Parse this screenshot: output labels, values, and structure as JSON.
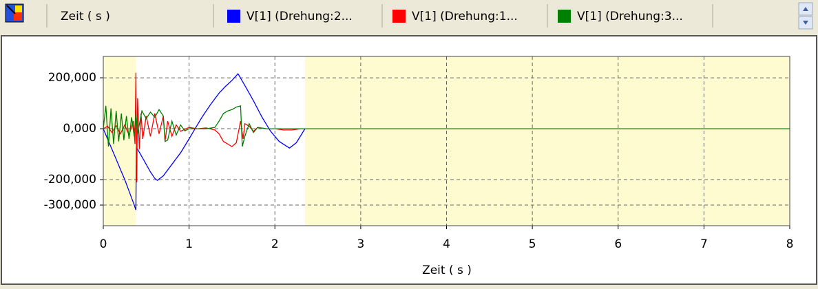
{
  "toolbar": {
    "x_selector": "Zeit ( s )"
  },
  "chart_data": {
    "type": "line",
    "x_label": "Zeit ( s )",
    "xlim": [
      0,
      8
    ],
    "xticks": [
      0,
      1,
      2,
      3,
      4,
      5,
      6,
      7,
      8
    ],
    "ylim": [
      -381000,
      284000
    ],
    "yticks": [
      {
        "value": 200000,
        "label": "200,000"
      },
      {
        "value": 0,
        "label": "0,000"
      },
      {
        "value": -200000,
        "label": "-200,000"
      },
      {
        "value": -300000,
        "label": "-300,000"
      }
    ],
    "grid": true,
    "shaded_ranges": [
      [
        0,
        0.38
      ],
      [
        2.35,
        8
      ]
    ],
    "shade_color": "#fffbd0",
    "series": [
      {
        "name": "V[1] (Drehung:2...",
        "color": "#0000ff",
        "x": [
          0,
          0.05,
          0.1,
          0.15,
          0.2,
          0.25,
          0.3,
          0.35,
          0.38,
          0.385,
          0.4,
          0.45,
          0.5,
          0.55,
          0.6,
          0.63,
          0.7,
          0.8,
          0.9,
          1.0,
          1.07,
          1.15,
          1.25,
          1.35,
          1.42,
          1.5,
          1.57,
          1.65,
          1.75,
          1.85,
          1.95,
          2.05,
          2.17,
          2.25,
          2.35
        ],
        "values": [
          0,
          -40000,
          -80000,
          -120000,
          -160000,
          -200000,
          -245000,
          -290000,
          -319000,
          -76000,
          -80000,
          -110000,
          -140000,
          -170000,
          -195000,
          -203000,
          -185000,
          -140000,
          -95000,
          -40000,
          0,
          45000,
          95000,
          140000,
          165000,
          190000,
          216000,
          170000,
          110000,
          45000,
          -10000,
          -50000,
          -76000,
          -55000,
          0
        ]
      },
      {
        "name": "V[1] (Drehung:1...",
        "color": "#ff0000",
        "x": [
          0,
          0.05,
          0.1,
          0.15,
          0.2,
          0.25,
          0.3,
          0.35,
          0.37,
          0.38,
          0.39,
          0.4,
          0.42,
          0.44,
          0.46,
          0.5,
          0.55,
          0.6,
          0.65,
          0.7,
          0.72,
          0.75,
          0.8,
          0.85,
          0.9,
          1.0,
          1.1,
          1.2,
          1.3,
          1.35,
          1.4,
          1.45,
          1.5,
          1.55,
          1.6,
          1.63,
          1.65,
          1.7,
          1.75,
          1.8,
          1.9,
          2.0,
          2.1,
          2.2,
          2.3,
          2.35
        ],
        "values": [
          0,
          10000,
          -15000,
          12000,
          -20000,
          15000,
          -25000,
          30000,
          -60000,
          220000,
          -210000,
          120000,
          -80000,
          60000,
          -40000,
          50000,
          -30000,
          60000,
          -20000,
          50000,
          -50000,
          30000,
          -30000,
          15000,
          -10000,
          5000,
          0,
          3000,
          -5000,
          -20000,
          -50000,
          -60000,
          -70000,
          -55000,
          30000,
          -40000,
          20000,
          10000,
          -10000,
          5000,
          0,
          0,
          -5000,
          -5000,
          0,
          0
        ]
      },
      {
        "name": "V[1] (Drehung:3...",
        "color": "#008000",
        "x": [
          0,
          0.03,
          0.06,
          0.09,
          0.12,
          0.15,
          0.18,
          0.21,
          0.24,
          0.27,
          0.3,
          0.33,
          0.36,
          0.38,
          0.4,
          0.45,
          0.5,
          0.55,
          0.6,
          0.65,
          0.7,
          0.72,
          0.75,
          0.8,
          0.85,
          0.9,
          0.95,
          1.0,
          1.2,
          1.3,
          1.35,
          1.4,
          1.45,
          1.5,
          1.55,
          1.6,
          1.62,
          1.65,
          1.7,
          1.75,
          1.8,
          1.9,
          2.0,
          2.2,
          2.35,
          8
        ],
        "values": [
          0,
          90000,
          -70000,
          80000,
          -60000,
          70000,
          -50000,
          60000,
          -45000,
          50000,
          -40000,
          45000,
          -30000,
          60000,
          -20000,
          70000,
          40000,
          65000,
          45000,
          75000,
          50000,
          -50000,
          -45000,
          30000,
          -25000,
          15000,
          -8000,
          0,
          0,
          5000,
          30000,
          60000,
          70000,
          75000,
          85000,
          90000,
          -70000,
          -30000,
          20000,
          -15000,
          5000,
          0,
          0,
          0,
          0,
          0
        ]
      }
    ]
  }
}
